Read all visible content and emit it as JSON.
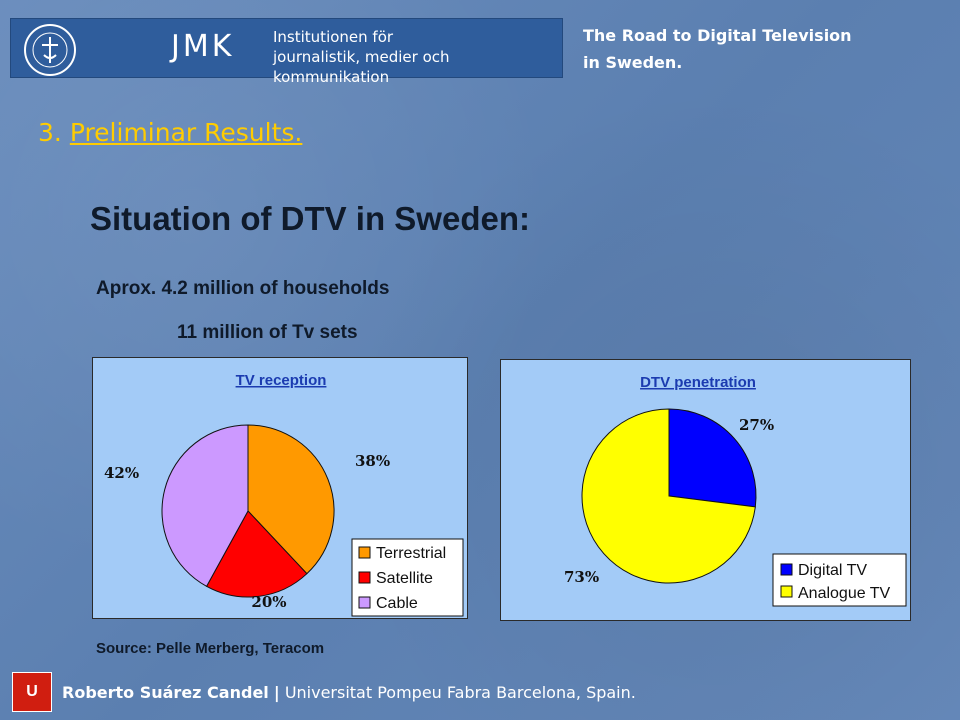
{
  "header": {
    "logo_text": "JMK",
    "institution_line1": "Institutionen för",
    "institution_line2": "journalistik, medier och kommunikation",
    "presentation_title_line1": "The Road to Digital Television",
    "presentation_title_line2": "in Sweden."
  },
  "section": {
    "number": "3.",
    "title": "Preliminar Results."
  },
  "main_title": "Situation of DTV in Sweden:",
  "facts": {
    "households": "Aprox. 4.2 million of households",
    "tv_sets": "11 million of Tv sets"
  },
  "chart_data": [
    {
      "type": "pie",
      "title": "TV reception",
      "categories": [
        "Terrestrial",
        "Satellite",
        "Cable"
      ],
      "values": [
        38,
        20,
        42
      ],
      "labels": [
        "38%",
        "20%",
        "42%"
      ],
      "colors": [
        "#ff9900",
        "#ff0000",
        "#cc99ff"
      ],
      "legend": "bottom-right"
    },
    {
      "type": "pie",
      "title": "DTV penetration",
      "categories": [
        "Digital TV",
        "Analogue TV"
      ],
      "values": [
        27,
        73
      ],
      "labels": [
        "27%",
        "73%"
      ],
      "colors": [
        "#0000ff",
        "#ffff00"
      ],
      "legend": "bottom-right"
    }
  ],
  "source": "Source: Pelle Merberg, Teracom",
  "footer": {
    "author": "Roberto Suárez Candel",
    "separator": "|",
    "affiliation": "Universitat Pompeu Fabra Barcelona, Spain."
  }
}
